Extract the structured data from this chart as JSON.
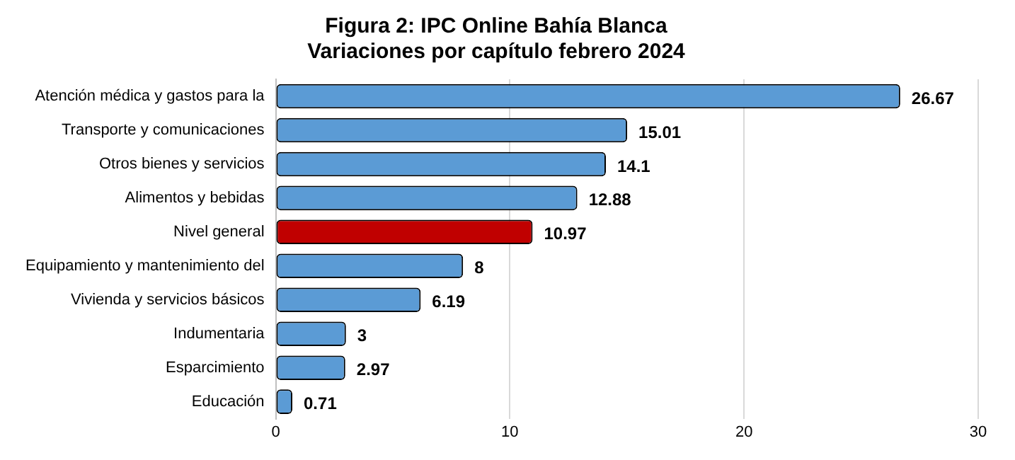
{
  "chart_data": {
    "type": "bar",
    "orientation": "horizontal",
    "title": "Figura 2: IPC Online Bahía Blanca",
    "subtitle": "Variaciones por capítulo febrero 2024",
    "categories": [
      "Atención médica y gastos para la",
      "Transporte y comunicaciones",
      "Otros bienes y servicios",
      "Alimentos y bebidas",
      "Nivel general",
      "Equipamiento y mantenimiento del",
      "Vivienda y servicios básicos",
      "Indumentaria",
      "Esparcimiento",
      "Educación"
    ],
    "values": [
      26.67,
      15.01,
      14.1,
      12.88,
      10.97,
      8,
      6.19,
      3,
      2.97,
      0.71
    ],
    "colors": [
      "#5b9bd5",
      "#5b9bd5",
      "#5b9bd5",
      "#5b9bd5",
      "#c00000",
      "#5b9bd5",
      "#5b9bd5",
      "#5b9bd5",
      "#5b9bd5",
      "#5b9bd5"
    ],
    "xlim": [
      0,
      30
    ],
    "xticks": [
      0,
      10,
      20,
      30
    ],
    "grid": "x",
    "data_labels": true,
    "legend": false
  }
}
